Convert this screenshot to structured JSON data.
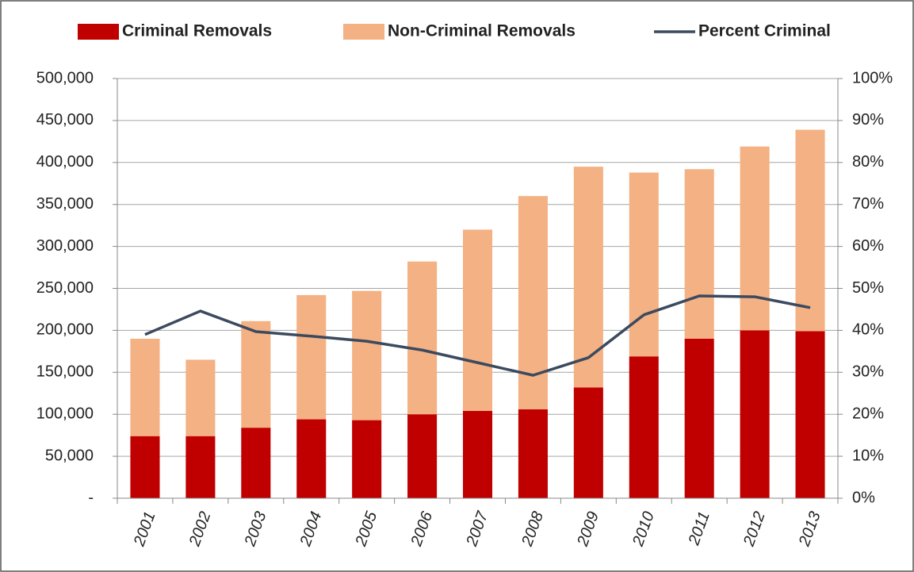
{
  "chart_data": {
    "type": "bar-line",
    "categories": [
      "2001",
      "2002",
      "2003",
      "2004",
      "2005",
      "2006",
      "2007",
      "2008",
      "2009",
      "2010",
      "2011",
      "2012",
      "2013"
    ],
    "series": [
      {
        "name": "Criminal Removals",
        "type": "bar",
        "color": "#c00000",
        "values": [
          74000,
          74000,
          84000,
          94000,
          93000,
          100000,
          104000,
          106000,
          132000,
          169000,
          190000,
          200000,
          199000
        ]
      },
      {
        "name": "Non-Criminal Removals",
        "type": "bar",
        "color": "#f4b183",
        "values": [
          116000,
          91000,
          127000,
          148000,
          154000,
          182000,
          216000,
          254000,
          263000,
          219000,
          202000,
          219000,
          240000
        ]
      },
      {
        "name": "Percent Criminal",
        "type": "line",
        "axis": "y2",
        "color": "#3b4a5e",
        "values": [
          39,
          44.6,
          39.7,
          38.6,
          37.4,
          35.3,
          32.3,
          29.3,
          33.5,
          43.7,
          48.2,
          48,
          45.4
        ]
      }
    ],
    "ylim": [
      0,
      500000
    ],
    "yticks": [
      {
        "value": 0,
        "label": "-"
      },
      {
        "value": 50000,
        "label": "50,000"
      },
      {
        "value": 100000,
        "label": "100,000"
      },
      {
        "value": 150000,
        "label": "150,000"
      },
      {
        "value": 200000,
        "label": "200,000"
      },
      {
        "value": 250000,
        "label": "250,000"
      },
      {
        "value": 300000,
        "label": "300,000"
      },
      {
        "value": 350000,
        "label": "350,000"
      },
      {
        "value": 400000,
        "label": "400,000"
      },
      {
        "value": 450000,
        "label": "450,000"
      },
      {
        "value": 500000,
        "label": "500,000"
      }
    ],
    "y2lim": [
      0,
      100
    ],
    "y2ticks": [
      {
        "value": 0,
        "label": "0%"
      },
      {
        "value": 10,
        "label": "10%"
      },
      {
        "value": 20,
        "label": "20%"
      },
      {
        "value": 30,
        "label": "30%"
      },
      {
        "value": 40,
        "label": "40%"
      },
      {
        "value": 50,
        "label": "50%"
      },
      {
        "value": 60,
        "label": "60%"
      },
      {
        "value": 70,
        "label": "70%"
      },
      {
        "value": 80,
        "label": "80%"
      },
      {
        "value": 90,
        "label": "90%"
      },
      {
        "value": 100,
        "label": "100%"
      }
    ],
    "grid": true,
    "legend": "top"
  }
}
